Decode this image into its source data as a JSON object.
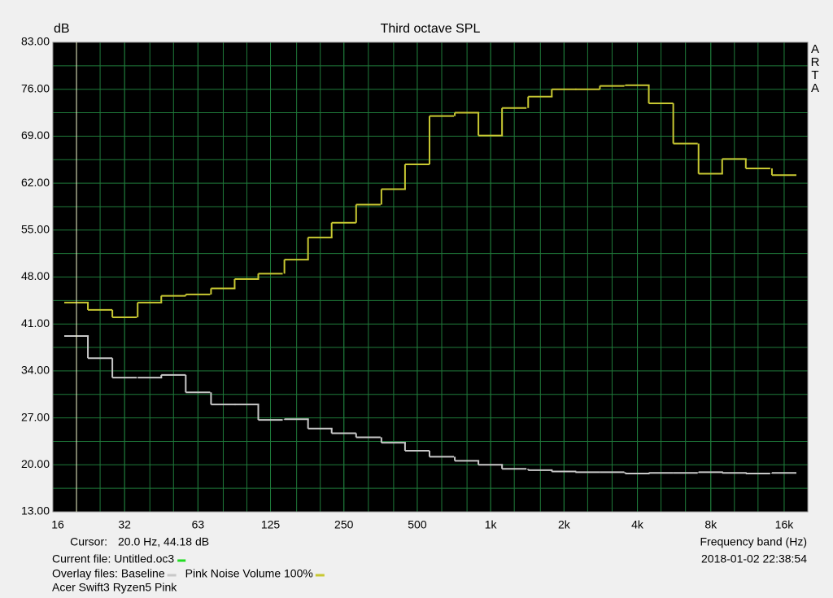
{
  "chart_data": {
    "type": "step",
    "title": "Third octave SPL",
    "y_label": "dB",
    "x_label": "Frequency band (Hz)",
    "brand": [
      "A",
      "R",
      "T",
      "A"
    ],
    "x_scale": "log",
    "grid": true,
    "grid_color": "#1f7a3a",
    "plot_background": "#000000",
    "xlim": [
      16,
      20000
    ],
    "xticks": [
      16,
      {
        "value": 31.5,
        "label": "32"
      },
      63,
      125,
      250,
      500,
      {
        "value": 1000,
        "label": "1k"
      },
      {
        "value": 2000,
        "label": "2k"
      },
      {
        "value": 4000,
        "label": "4k"
      },
      {
        "value": 8000,
        "label": "8k"
      },
      {
        "value": 16000,
        "label": "16k"
      }
    ],
    "ylim": [
      13,
      83
    ],
    "yticks": [
      {
        "value": 83,
        "label": "83.00"
      },
      {
        "value": 76,
        "label": "76.00"
      },
      {
        "value": 69,
        "label": "69.00"
      },
      {
        "value": 62,
        "label": "62.00"
      },
      {
        "value": 55,
        "label": "55.00"
      },
      {
        "value": 48,
        "label": "48.00"
      },
      {
        "value": 41,
        "label": "41.00"
      },
      {
        "value": 34,
        "label": "34.00"
      },
      {
        "value": 27,
        "label": "27.00"
      },
      {
        "value": 20,
        "label": "20.00"
      },
      {
        "value": 13,
        "label": "13.00"
      }
    ],
    "ygrid_minor": [
      79.5,
      72.5,
      65.5,
      58.5,
      51.5,
      44.5,
      37.5,
      30.5,
      23.5,
      16.5
    ],
    "x": [
      20,
      25,
      31.5,
      40,
      50,
      63,
      80,
      100,
      125,
      160,
      200,
      250,
      315,
      400,
      500,
      630,
      800,
      1000,
      1250,
      1600,
      2000,
      2500,
      3150,
      4000,
      5000,
      6300,
      8000,
      10000,
      12500,
      16000
    ],
    "series": [
      {
        "name": "Baseline",
        "color": "#c8c8c8",
        "values": [
          39.2,
          35.9,
          33.0,
          33.0,
          33.4,
          30.8,
          29.0,
          29.0,
          26.7,
          26.8,
          25.4,
          24.7,
          24.1,
          23.3,
          22.1,
          21.2,
          20.6,
          20.0,
          19.4,
          19.2,
          19.0,
          18.9,
          18.9,
          18.7,
          18.8,
          18.8,
          18.9,
          18.8,
          18.7,
          18.8
        ]
      },
      {
        "name": "Pink Noise Volume 100%",
        "color": "#c8c832",
        "values": [
          44.2,
          43.1,
          42.0,
          44.2,
          45.2,
          45.4,
          46.3,
          47.7,
          48.5,
          50.6,
          53.9,
          56.1,
          58.8,
          61.1,
          64.8,
          72.0,
          72.5,
          69.1,
          73.2,
          74.9,
          76.0,
          76.0,
          76.5,
          76.6,
          73.9,
          67.9,
          63.4,
          65.6,
          64.2,
          63.2
        ]
      }
    ],
    "cursor": {
      "x": 20,
      "color": "#f0f0c8",
      "label": "Cursor:",
      "readout": "20.0 Hz, 44.18 dB"
    },
    "timestamp": "2018-01-02  22:38:54",
    "current_file": {
      "label": "Current file: Untitled.oc3",
      "color": "#22dd22"
    },
    "overlay_label": "Overlay files:",
    "note": "Acer Swift3 Ryzen5 Pink"
  }
}
